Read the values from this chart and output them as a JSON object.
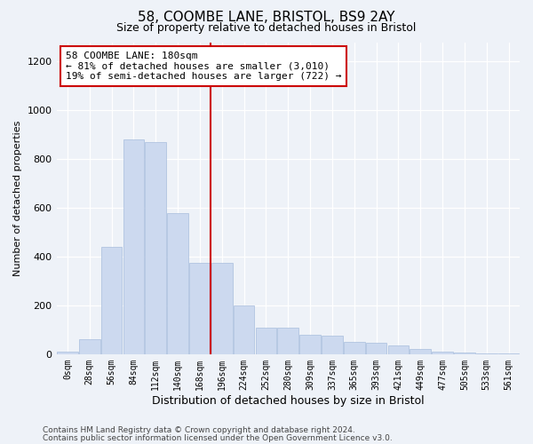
{
  "title1": "58, COOMBE LANE, BRISTOL, BS9 2AY",
  "title2": "Size of property relative to detached houses in Bristol",
  "xlabel": "Distribution of detached houses by size in Bristol",
  "ylabel": "Number of detached properties",
  "bar_labels": [
    "0sqm",
    "28sqm",
    "56sqm",
    "84sqm",
    "112sqm",
    "140sqm",
    "168sqm",
    "196sqm",
    "224sqm",
    "252sqm",
    "280sqm",
    "309sqm",
    "337sqm",
    "365sqm",
    "393sqm",
    "421sqm",
    "449sqm",
    "477sqm",
    "505sqm",
    "533sqm",
    "561sqm"
  ],
  "bar_values": [
    10,
    60,
    440,
    880,
    870,
    580,
    375,
    375,
    200,
    110,
    110,
    80,
    75,
    50,
    48,
    37,
    20,
    12,
    8,
    3,
    2
  ],
  "bar_color": "#ccd9ef",
  "bar_edge_color": "#a8bedd",
  "vline_x": 6.5,
  "vline_color": "#cc0000",
  "annotation_text": "58 COOMBE LANE: 180sqm\n← 81% of detached houses are smaller (3,010)\n19% of semi-detached houses are larger (722) →",
  "annotation_box_color": "#ffffff",
  "annotation_box_edge": "#cc0000",
  "ylim": [
    0,
    1280
  ],
  "yticks": [
    0,
    200,
    400,
    600,
    800,
    1000,
    1200
  ],
  "footer1": "Contains HM Land Registry data © Crown copyright and database right 2024.",
  "footer2": "Contains public sector information licensed under the Open Government Licence v3.0.",
  "bg_color": "#eef2f8",
  "title1_fontsize": 11,
  "title2_fontsize": 9,
  "xlabel_fontsize": 9,
  "ylabel_fontsize": 8,
  "tick_fontsize": 7,
  "annotation_fontsize": 8,
  "footer_fontsize": 6.5
}
